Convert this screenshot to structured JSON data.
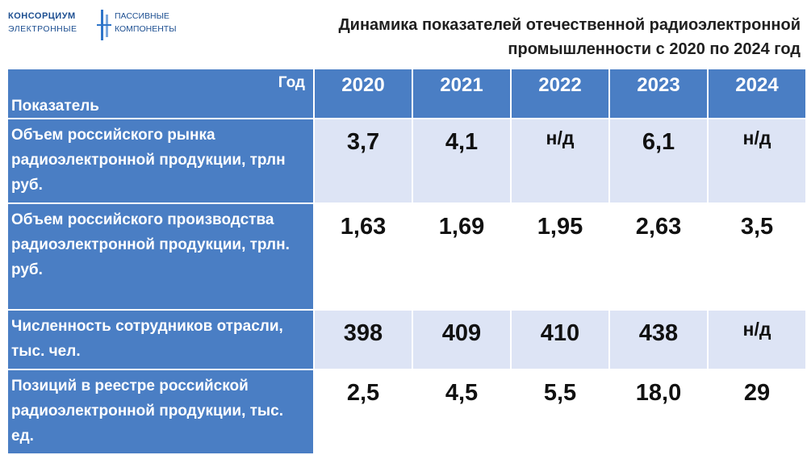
{
  "logo": {
    "left_line1": "КОНСОРЦИУМ",
    "left_line2": "ЭЛЕКТРОННЫЕ",
    "right_line1": "ПАССИВНЫЕ",
    "right_line2": "КОМПОНЕНТЫ"
  },
  "title": {
    "line1": "Динамика показателей отечественной радиоэлектронной",
    "line2": "промышленности с 2020 по 2024 год"
  },
  "table": {
    "header_year_label": "Год",
    "header_indicator_label": "Показатель",
    "years": [
      "2020",
      "2021",
      "2022",
      "2023",
      "2024"
    ],
    "rows": [
      {
        "label": "Объем российского рынка радиоэлектронной продукции, трлн руб.",
        "values": [
          "3,7",
          "4,1",
          "н/д",
          "6,1",
          "н/д"
        ]
      },
      {
        "label": "Объем российского производства радиоэлектронной продукции, трлн. руб.",
        "values": [
          "1,63",
          "1,69",
          "1,95",
          "2,63",
          "3,5"
        ]
      },
      {
        "label": "Численность сотрудников отрасли, тыс. чел.",
        "values": [
          "398",
          "409",
          "410",
          "438",
          "н/д"
        ]
      },
      {
        "label": "Позиций в реестре российской радиоэлектронной продукции, тыс. ед.",
        "values": [
          "2,5",
          "4,5",
          "5,5",
          "18,0",
          "29"
        ]
      }
    ]
  },
  "colors": {
    "header_blue": "#4a7ec4",
    "row_shade": "#dde4f5"
  }
}
